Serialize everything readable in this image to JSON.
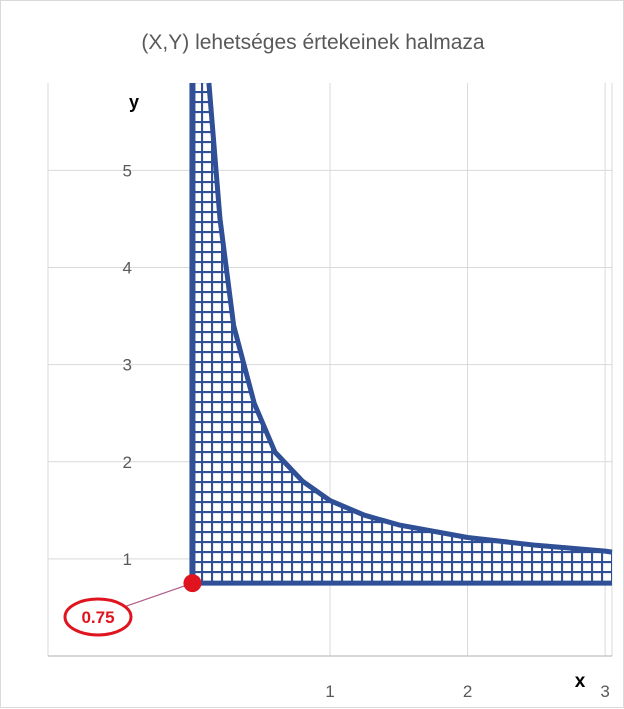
{
  "chart_data": {
    "type": "area",
    "title": "(X,Y) lehetséges értekeinek halmaza",
    "xlabel": "x",
    "ylabel": "y",
    "xlim": [
      -1.05,
      3.05
    ],
    "ylim": [
      0,
      5.9
    ],
    "x_ticks": [
      1,
      2,
      3
    ],
    "y_ticks": [
      1,
      2,
      3,
      4,
      5
    ],
    "grid": true,
    "region": {
      "description_kind": "shaded set of possible (X,Y) values",
      "x_left": 0,
      "y_bottom": 0.75,
      "upper_curve_points": [
        {
          "x": 0.12,
          "y": 5.9
        },
        {
          "x": 0.2,
          "y": 4.5
        },
        {
          "x": 0.3,
          "y": 3.4
        },
        {
          "x": 0.45,
          "y": 2.6
        },
        {
          "x": 0.6,
          "y": 2.1
        },
        {
          "x": 0.8,
          "y": 1.8
        },
        {
          "x": 1.0,
          "y": 1.6
        },
        {
          "x": 1.25,
          "y": 1.45
        },
        {
          "x": 1.5,
          "y": 1.35
        },
        {
          "x": 2.0,
          "y": 1.22
        },
        {
          "x": 2.5,
          "y": 1.14
        },
        {
          "x": 3.0,
          "y": 1.08
        },
        {
          "x": 3.05,
          "y": 1.07
        }
      ],
      "fill_color": "#2f4f96"
    },
    "annotation": {
      "point": {
        "x": 0,
        "y": 0.75
      },
      "label": "0.75",
      "color": "#e0141e"
    }
  }
}
